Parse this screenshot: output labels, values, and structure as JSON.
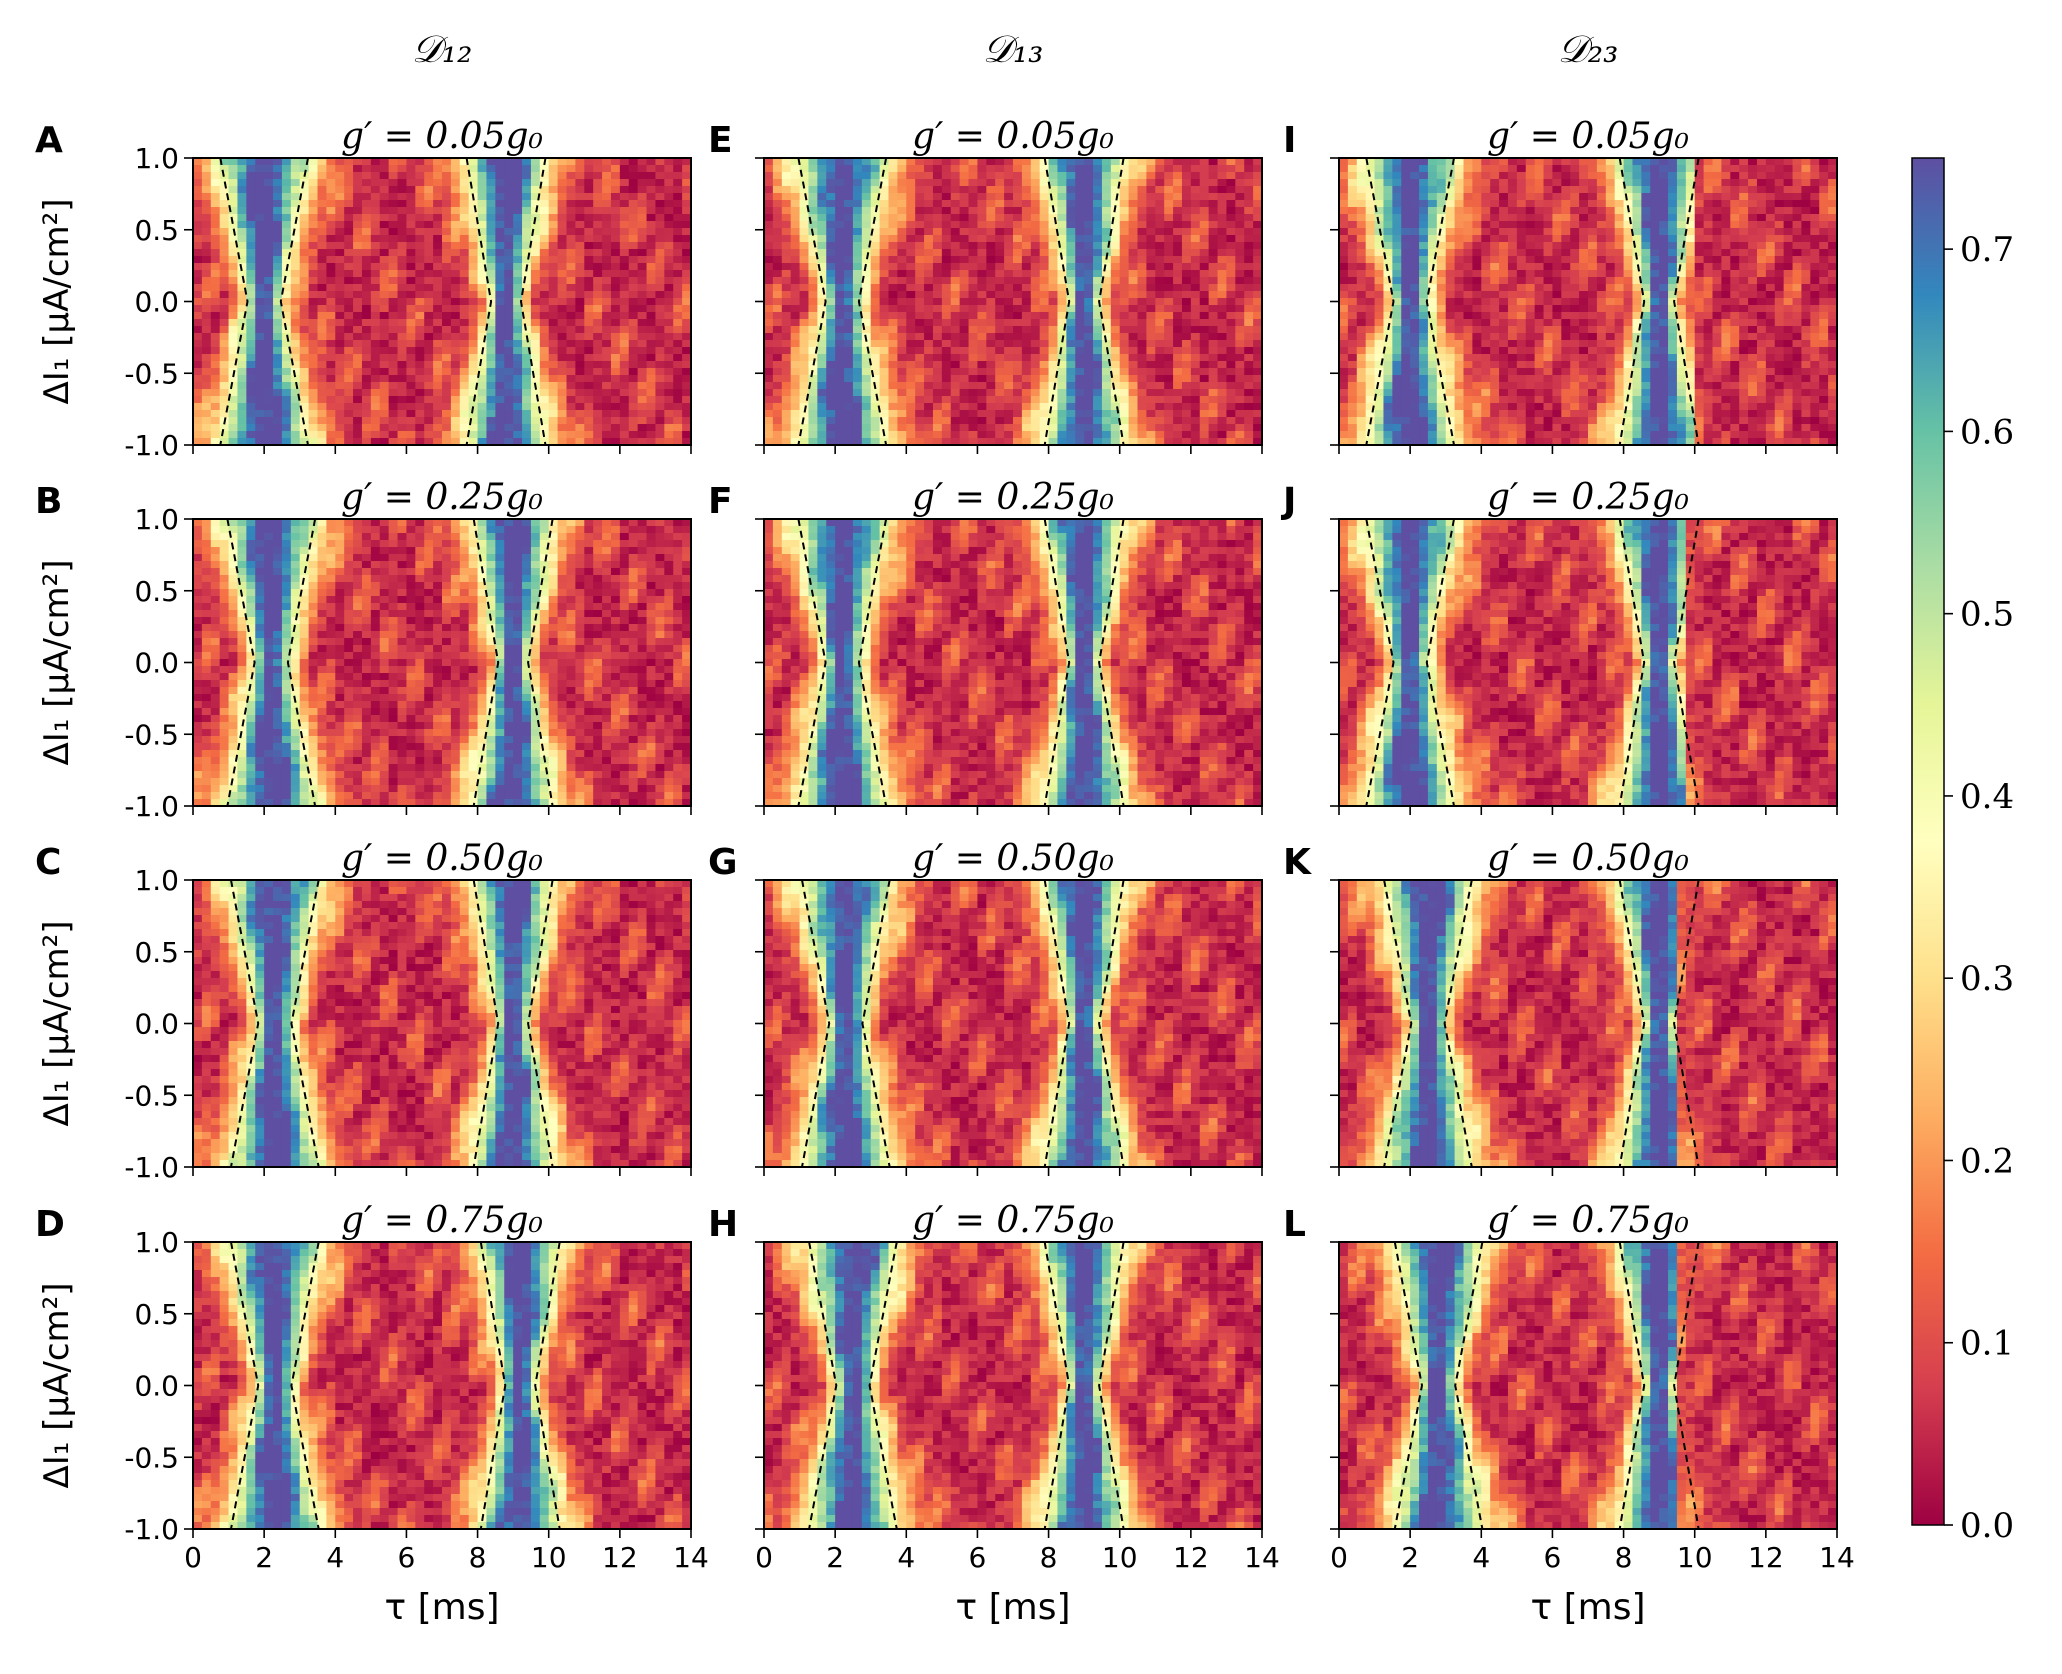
{
  "figure": {
    "column_titles": [
      "𝒟₁₂",
      "𝒟₁₃",
      "𝒟₂₃"
    ],
    "panel_letters": [
      [
        "A",
        "B",
        "C",
        "D"
      ],
      [
        "E",
        "F",
        "G",
        "H"
      ],
      [
        "I",
        "J",
        "K",
        "L"
      ]
    ],
    "row_titles": [
      "g′ = 0.05g₀",
      "g′ = 0.25g₀",
      "g′ = 0.50g₀",
      "g′ = 0.75g₀"
    ],
    "ylabel": "ΔI₁ [μA/cm²]",
    "xlabel": "τ [ms]",
    "x_ticks": [
      "0",
      "2",
      "4",
      "6",
      "8",
      "10",
      "12",
      "14"
    ],
    "y_ticks": [
      "1.0",
      "0.5",
      "0.0",
      "-0.5",
      "-1.0"
    ],
    "colorbar_ticks": [
      "0.7",
      "0.6",
      "0.5",
      "0.4",
      "0.3",
      "0.2",
      "0.1",
      "0.0"
    ]
  },
  "colors": {
    "spectral_r_low": "#9e0142",
    "spectral_r_mid": "#ffffbf",
    "spectral_r_high": "#5e4fa2",
    "contour": "#000000"
  },
  "chart_data": {
    "type": "heatmap",
    "layout": "grid 4 rows x 3 columns",
    "columns": [
      "𝒟₁₂",
      "𝒟₁₃",
      "𝒟₂₃"
    ],
    "rows": [
      "g′ = 0.05g₀",
      "g′ = 0.25g₀",
      "g′ = 0.50g₀",
      "g′ = 0.75g₀"
    ],
    "xlabel": "τ [ms]",
    "ylabel": "ΔI₁ [μA/cm²]",
    "xlim": [
      0,
      14
    ],
    "ylim": [
      -1.0,
      1.0
    ],
    "x_ticks": [
      0,
      2,
      4,
      6,
      8,
      10,
      12,
      14
    ],
    "y_ticks": [
      -1.0,
      -0.5,
      0.0,
      0.5,
      1.0
    ],
    "colorbar": {
      "colormap": "Spectral_r",
      "range": [
        0.0,
        0.75
      ],
      "ticks": [
        0.0,
        0.1,
        0.2,
        0.3,
        0.4,
        0.5,
        0.6,
        0.7
      ]
    },
    "contours": "dashed black contour line",
    "panels": [
      {
        "label": "A",
        "column": 0,
        "row": 0,
        "high_bands_tau": [
          2.0,
          8.8
        ],
        "right_edge_tau": null
      },
      {
        "label": "B",
        "column": 0,
        "row": 1,
        "high_bands_tau": [
          2.2,
          9.0
        ],
        "right_edge_tau": null
      },
      {
        "label": "C",
        "column": 0,
        "row": 2,
        "high_bands_tau": [
          2.3,
          9.0
        ],
        "right_edge_tau": null
      },
      {
        "label": "D",
        "column": 0,
        "row": 3,
        "high_bands_tau": [
          2.3,
          9.2
        ],
        "right_edge_tau": null
      },
      {
        "label": "E",
        "column": 1,
        "row": 0,
        "high_bands_tau": [
          2.2,
          9.0
        ],
        "right_edge_tau": null
      },
      {
        "label": "F",
        "column": 1,
        "row": 1,
        "high_bands_tau": [
          2.2,
          9.0
        ],
        "right_edge_tau": null
      },
      {
        "label": "G",
        "column": 1,
        "row": 2,
        "high_bands_tau": [
          2.3,
          9.0
        ],
        "right_edge_tau": null
      },
      {
        "label": "H",
        "column": 1,
        "row": 3,
        "high_bands_tau": [
          2.5,
          9.0
        ],
        "right_edge_tau": null
      },
      {
        "label": "I",
        "column": 2,
        "row": 0,
        "high_bands_tau": [
          2.0,
          9.0
        ],
        "right_edge_tau": 10.0
      },
      {
        "label": "J",
        "column": 2,
        "row": 1,
        "high_bands_tau": [
          2.0,
          9.0
        ],
        "right_edge_tau": 9.8
      },
      {
        "label": "K",
        "column": 2,
        "row": 2,
        "high_bands_tau": [
          2.5,
          9.0
        ],
        "right_edge_tau": 9.6
      },
      {
        "label": "L",
        "column": 2,
        "row": 3,
        "high_bands_tau": [
          2.8,
          9.0
        ],
        "right_edge_tau": 9.6
      }
    ]
  }
}
